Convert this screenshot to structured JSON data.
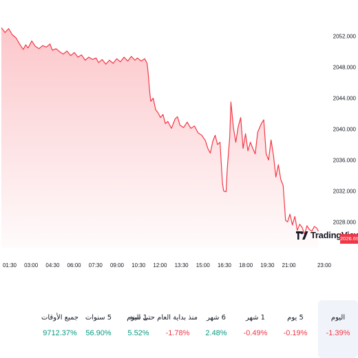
{
  "chart_data": {
    "type": "area",
    "y_ticks": [
      "2052.000",
      "2048.000",
      "2044.000",
      "2040.000",
      "2036.000",
      "2032.000",
      "2028.000"
    ],
    "y_tick_values": [
      2052,
      2048,
      2044,
      2040,
      2036,
      2032,
      2028
    ],
    "x_ticks": [
      "01:30",
      "03:00",
      "04:30",
      "06:00",
      "07:30",
      "09:00",
      "10:30",
      "12:00",
      "13:30",
      "15:00",
      "16:30",
      "18:00",
      "19:30",
      "21:00",
      "23:00"
    ],
    "ylim": [
      2025.0,
      2054.2
    ],
    "x_domain": [
      0,
      14
    ],
    "series": [
      {
        "color": "#f23645",
        "points": [
          [
            0.0,
            2053.1
          ],
          [
            0.15,
            2052.5
          ],
          [
            0.3,
            2053.0
          ],
          [
            0.45,
            2052.2
          ],
          [
            0.6,
            2051.8
          ],
          [
            0.75,
            2051.0
          ],
          [
            0.9,
            2050.3
          ],
          [
            1.0,
            2050.9
          ],
          [
            1.1,
            2050.5
          ],
          [
            1.25,
            2051.4
          ],
          [
            1.4,
            2050.7
          ],
          [
            1.55,
            2050.4
          ],
          [
            1.7,
            2050.8
          ],
          [
            1.85,
            2050.6
          ],
          [
            2.0,
            2051.0
          ],
          [
            2.1,
            2050.2
          ],
          [
            2.25,
            2050.4
          ],
          [
            2.4,
            2050.0
          ],
          [
            2.55,
            2049.7
          ],
          [
            2.7,
            2050.1
          ],
          [
            2.85,
            2049.5
          ],
          [
            3.0,
            2049.9
          ],
          [
            3.15,
            2049.3
          ],
          [
            3.3,
            2049.6
          ],
          [
            3.45,
            2048.9
          ],
          [
            3.6,
            2049.3
          ],
          [
            3.75,
            2049.0
          ],
          [
            3.9,
            2049.2
          ],
          [
            4.0,
            2048.6
          ],
          [
            4.15,
            2049.0
          ],
          [
            4.3,
            2048.4
          ],
          [
            4.45,
            2048.9
          ],
          [
            4.6,
            2048.5
          ],
          [
            4.75,
            2049.1
          ],
          [
            4.9,
            2048.7
          ],
          [
            5.05,
            2049.3
          ],
          [
            5.2,
            2048.8
          ],
          [
            5.35,
            2049.4
          ],
          [
            5.5,
            2048.9
          ],
          [
            5.6,
            2049.2
          ],
          [
            5.75,
            2048.8
          ],
          [
            5.9,
            2049.1
          ],
          [
            6.0,
            2048.5
          ],
          [
            6.05,
            2047.0
          ],
          [
            6.1,
            2045.0
          ],
          [
            6.15,
            2043.6
          ],
          [
            6.25,
            2044.0
          ],
          [
            6.35,
            2042.5
          ],
          [
            6.45,
            2042.1
          ],
          [
            6.55,
            2041.5
          ],
          [
            6.65,
            2041.9
          ],
          [
            6.75,
            2040.7
          ],
          [
            6.85,
            2041.0
          ],
          [
            7.0,
            2040.1
          ],
          [
            7.15,
            2041.3
          ],
          [
            7.25,
            2041.6
          ],
          [
            7.35,
            2040.5
          ],
          [
            7.5,
            2040.2
          ],
          [
            7.65,
            2040.9
          ],
          [
            7.8,
            2040.1
          ],
          [
            7.95,
            2040.4
          ],
          [
            8.1,
            2039.5
          ],
          [
            8.25,
            2039.2
          ],
          [
            8.4,
            2038.5
          ],
          [
            8.5,
            2037.5
          ],
          [
            8.6,
            2036.9
          ],
          [
            8.7,
            2038.4
          ],
          [
            8.8,
            2039.2
          ],
          [
            8.9,
            2038.0
          ],
          [
            9.0,
            2038.3
          ],
          [
            9.1,
            2033.0
          ],
          [
            9.15,
            2032.0
          ],
          [
            9.25,
            2031.9
          ],
          [
            9.3,
            2035.0
          ],
          [
            9.4,
            2039.0
          ],
          [
            9.45,
            2043.5
          ],
          [
            9.55,
            2040.2
          ],
          [
            9.65,
            2038.3
          ],
          [
            9.75,
            2040.3
          ],
          [
            9.85,
            2041.5
          ],
          [
            9.95,
            2037.5
          ],
          [
            10.05,
            2039.4
          ],
          [
            10.15,
            2037.2
          ],
          [
            10.25,
            2038.3
          ],
          [
            10.35,
            2037.5
          ],
          [
            10.45,
            2036.8
          ],
          [
            10.55,
            2039.6
          ],
          [
            10.7,
            2040.7
          ],
          [
            10.8,
            2041.2
          ],
          [
            10.9,
            2036.8
          ],
          [
            11.0,
            2036.0
          ],
          [
            11.1,
            2038.6
          ],
          [
            11.2,
            2036.6
          ],
          [
            11.3,
            2033.8
          ],
          [
            11.4,
            2035.4
          ],
          [
            11.5,
            2033.5
          ],
          [
            11.6,
            2032.7
          ],
          [
            11.7,
            2028.2
          ],
          [
            11.78,
            2028.0
          ],
          [
            11.88,
            2029.0
          ],
          [
            11.98,
            2027.6
          ],
          [
            12.08,
            2028.7
          ],
          [
            12.18,
            2026.9
          ],
          [
            12.28,
            2027.7
          ],
          [
            12.38,
            2027.3
          ],
          [
            12.48,
            2026.4
          ],
          [
            12.58,
            2027.5
          ],
          [
            12.68,
            2027.0
          ],
          [
            12.78,
            2026.8
          ],
          [
            12.88,
            2027.4
          ],
          [
            12.98,
            2027.2
          ],
          [
            13.05,
            2026.8
          ]
        ]
      }
    ],
    "last_price": "2026.690",
    "grid": false,
    "legend": "none"
  },
  "brand": {
    "logo_text": "TradingView"
  },
  "periods": [
    {
      "label": "اليوم",
      "value": "-1.39%",
      "active": true
    },
    {
      "label": "5 يوم",
      "value": "-0.19%",
      "active": false
    },
    {
      "label": "1 شهر",
      "value": "-0.49%",
      "active": false
    },
    {
      "label": "6 شهر",
      "value": "2.48%",
      "active": false
    },
    {
      "label": "منذ بداية العام حتى اليوم",
      "value": "-1.78%",
      "active": false
    },
    {
      "label": "1 سنة",
      "value": "5.52%",
      "active": false
    },
    {
      "label": "5 سنوات",
      "value": "56.90%",
      "active": false
    },
    {
      "label": "جميع الأوقات",
      "value": "9712.37%",
      "active": false
    }
  ],
  "colors": {
    "negative": "#f23645",
    "positive": "#089981",
    "line": "#f23645"
  }
}
